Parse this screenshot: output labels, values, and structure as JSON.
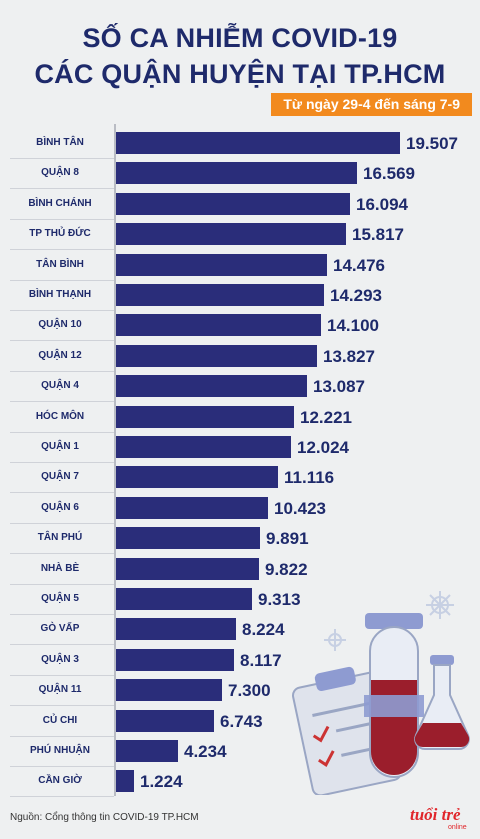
{
  "header": {
    "title_line1": "SỐ CA NHIỄM COVID-19",
    "title_line2": "CÁC QUẬN HUYỆN TẠI TP.HCM",
    "date_range": "Từ ngày 29-4 đến sáng 7-9"
  },
  "source": "Nguồn: Cổng thông tin COVID-19 TP.HCM",
  "logo_text": "tuổi trẻ",
  "logo_sub": "online",
  "colors": {
    "bar": "#2a2d7a",
    "text": "#1e2a6b",
    "accent": "#f28a1e"
  },
  "chart_data": {
    "type": "bar",
    "orientation": "horizontal",
    "title": "SỐ CA NHIỄM COVID-19 CÁC QUẬN HUYỆN TẠI TP.HCM",
    "subtitle": "Từ ngày 29-4 đến sáng 7-9",
    "categories": [
      "BÌNH TÂN",
      "QUẬN 8",
      "BÌNH CHÁNH",
      "TP THỦ ĐỨC",
      "TÂN BÌNH",
      "BÌNH THẠNH",
      "QUẬN 10",
      "QUẬN 12",
      "QUẬN 4",
      "HÓC MÔN",
      "QUẬN 1",
      "QUẬN 7",
      "QUẬN 6",
      "TÂN PHÚ",
      "NHÀ BÈ",
      "QUẬN 5",
      "GÒ VẤP",
      "QUẬN 3",
      "QUẬN 11",
      "CỦ CHI",
      "PHÚ NHUẬN",
      "CẦN GIỜ"
    ],
    "values": [
      19507,
      16569,
      16094,
      15817,
      14476,
      14293,
      14100,
      13827,
      13087,
      12221,
      12024,
      11116,
      10423,
      9891,
      9822,
      9313,
      8224,
      8117,
      7300,
      6743,
      4234,
      1224
    ],
    "value_labels": [
      "19.507",
      "16.569",
      "16.094",
      "15.817",
      "14.476",
      "14.293",
      "14.100",
      "13.827",
      "13.087",
      "12.221",
      "12.024",
      "11.116",
      "10.423",
      "9.891",
      "9.822",
      "9.313",
      "8.224",
      "8.117",
      "7.300",
      "6.743",
      "4.234",
      "1.224"
    ],
    "xlim": [
      0,
      19507
    ],
    "grid": false,
    "legend": "none"
  }
}
